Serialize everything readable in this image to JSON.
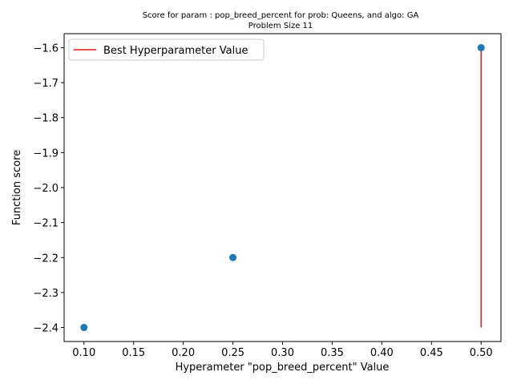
{
  "chart_data": {
    "type": "scatter",
    "title": "Score for param : pop_breed_percent for prob: Queens, and algo: GA",
    "subtitle": "Problem Size 11",
    "xlabel": "Hyperameter \"pop_breed_percent\" Value",
    "ylabel": "Function score",
    "xlim": [
      0.08,
      0.52
    ],
    "ylim": [
      -2.44,
      -1.56
    ],
    "x_ticks": [
      0.1,
      0.15,
      0.2,
      0.25,
      0.3,
      0.35,
      0.4,
      0.45,
      0.5
    ],
    "x_tick_labels": [
      "0.10",
      "0.15",
      "0.20",
      "0.25",
      "0.30",
      "0.35",
      "0.40",
      "0.45",
      "0.50"
    ],
    "y_ticks": [
      -2.4,
      -2.3,
      -2.2,
      -2.1,
      -2.0,
      -1.9,
      -1.8,
      -1.7,
      -1.6
    ],
    "y_tick_labels": [
      "−2.4",
      "−2.3",
      "−2.2",
      "−2.1",
      "−2.0",
      "−1.9",
      "−1.8",
      "−1.7",
      "−1.6"
    ],
    "grid": false,
    "legend_position": "top-left",
    "series": [
      {
        "kind": "scatter",
        "color": "#1f77b4",
        "x": [
          0.1,
          0.25,
          0.5
        ],
        "y": [
          -2.4,
          -2.2,
          -1.6
        ]
      },
      {
        "kind": "vline",
        "name": "Best Hyperparameter Value",
        "color": "#e31a1c",
        "x": 0.5,
        "ymin": -2.4,
        "ymax": -1.6
      }
    ]
  }
}
